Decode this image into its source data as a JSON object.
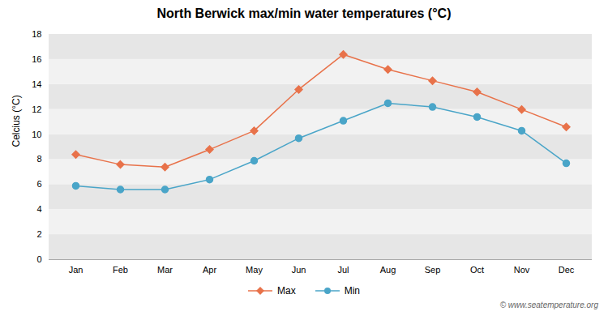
{
  "chart_data": {
    "type": "line",
    "title": "North Berwick max/min water temperatures (°C)",
    "ylabel": "Celcius (°C)",
    "categories": [
      "Jan",
      "Feb",
      "Mar",
      "Apr",
      "May",
      "Jun",
      "Jul",
      "Aug",
      "Sep",
      "Oct",
      "Nov",
      "Dec"
    ],
    "series": [
      {
        "name": "Max",
        "color": "#e8724a",
        "marker": "diamond",
        "values": [
          8.4,
          7.6,
          7.4,
          8.8,
          10.3,
          13.6,
          16.4,
          15.2,
          14.3,
          13.4,
          12.0,
          10.6
        ]
      },
      {
        "name": "Min",
        "color": "#4aa5c8",
        "marker": "circle",
        "values": [
          5.9,
          5.6,
          5.6,
          6.4,
          7.9,
          9.7,
          11.1,
          12.5,
          12.2,
          11.4,
          10.3,
          7.7
        ]
      }
    ],
    "ylim": [
      0,
      18
    ],
    "yticks": [
      0,
      2,
      4,
      6,
      8,
      10,
      12,
      14,
      16,
      18
    ],
    "grid": true,
    "legend": "bottom",
    "annotations": [
      "© www.seatemperature.org"
    ]
  }
}
